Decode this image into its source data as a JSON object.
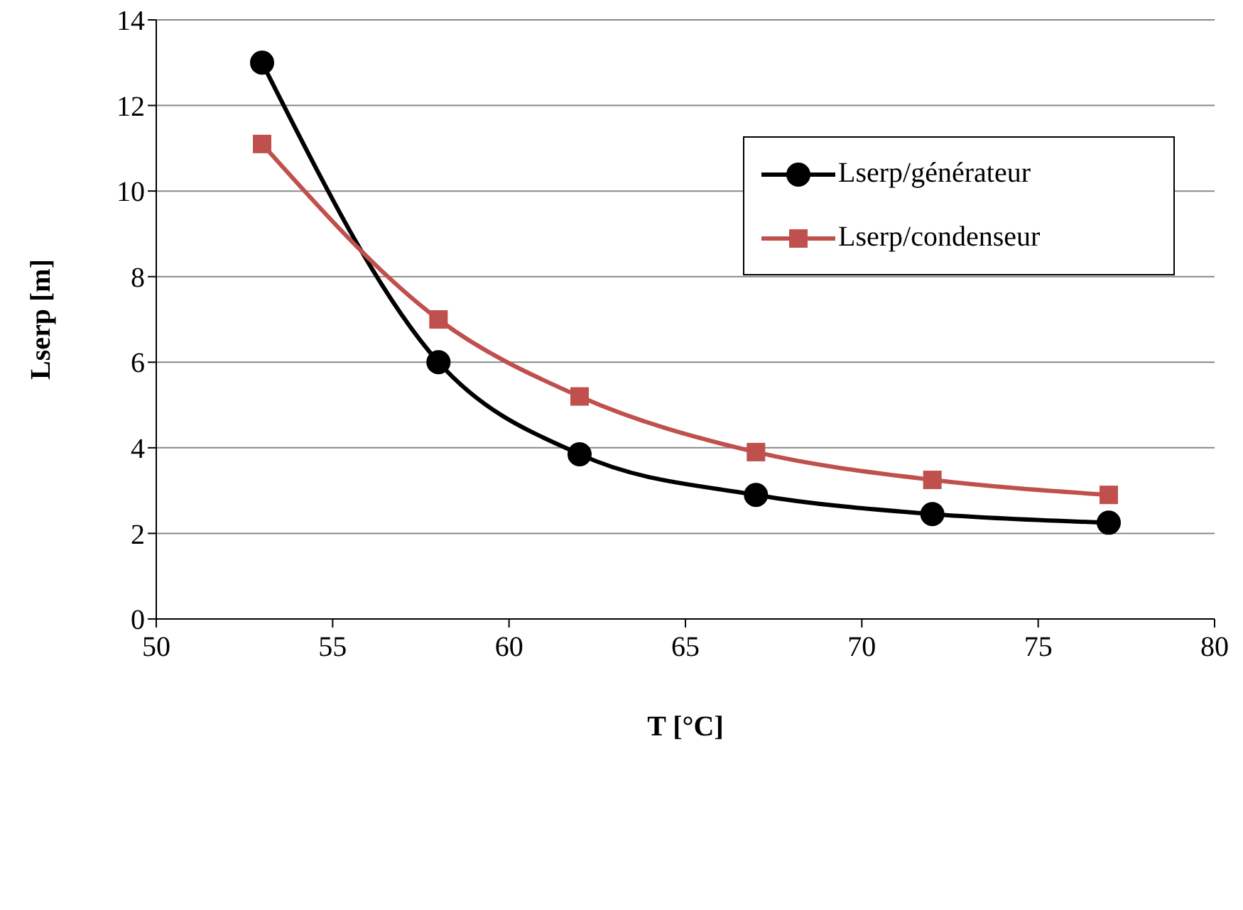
{
  "chart_data": {
    "type": "line",
    "xlabel": "T [°C]",
    "ylabel": "Lserp [m]",
    "x": [
      53,
      58,
      62,
      67,
      72,
      77
    ],
    "series": [
      {
        "name": "Lserp/générateur",
        "color": "#000000",
        "marker": "circle",
        "values": [
          13.0,
          6.0,
          3.85,
          2.9,
          2.45,
          2.25
        ]
      },
      {
        "name": "Lserp/condenseur",
        "color": "#c0504d",
        "marker": "square",
        "values": [
          11.1,
          7.0,
          5.2,
          3.9,
          3.25,
          2.9
        ]
      }
    ],
    "xlim": [
      50,
      80
    ],
    "xticks": [
      50,
      55,
      60,
      65,
      70,
      75,
      80
    ],
    "ylim": [
      0,
      14
    ],
    "yticks": [
      0,
      2,
      4,
      6,
      8,
      10,
      12,
      14
    ],
    "grid": "y",
    "legend": "top right",
    "line_style": "solid"
  }
}
